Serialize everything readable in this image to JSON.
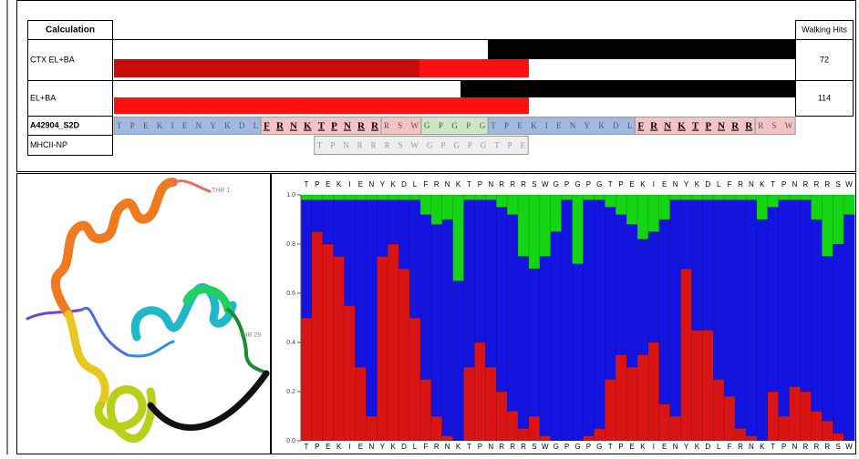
{
  "top_panel": {
    "header": {
      "calculation": "Calculation",
      "walking_hits": "Walking Hits"
    },
    "rows": [
      {
        "label": "CTX EL+BA",
        "hits": "72"
      },
      {
        "label": "EL+BA",
        "hits": "114"
      }
    ],
    "sequence_rows": [
      {
        "label": "A42904_S2D",
        "segments": [
          {
            "text": "TPEKIENYKDL",
            "color": "#9fb9e2"
          },
          {
            "text": "FRNKTPNRR",
            "color": "#f5c3c3",
            "bold": true
          },
          {
            "text": "RSW",
            "color": "#f5c3c3"
          },
          {
            "text": "GPGPG",
            "color": "#cbe7c3"
          },
          {
            "text": "TPEKIENYKDL",
            "color": "#9fb9e2"
          },
          {
            "text": "FRNKTPNRR",
            "color": "#f5c3c3",
            "bold": true
          },
          {
            "text": "RSW",
            "color": "#f5c3c3"
          }
        ]
      },
      {
        "label": "MHCII-NP",
        "segments": [
          {
            "text": "TPNRRRSWGPGPGTPE",
            "color": "#eeeeee"
          }
        ]
      }
    ]
  },
  "structure": {
    "labels": [
      "THR 1",
      "THR 29"
    ]
  },
  "chart_data": {
    "type": "stacked_bar",
    "categories": [
      "T",
      "P",
      "E",
      "K",
      "I",
      "E",
      "N",
      "Y",
      "K",
      "D",
      "L",
      "F",
      "R",
      "N",
      "K",
      "T",
      "P",
      "N",
      "R",
      "R",
      "R",
      "S",
      "W",
      "G",
      "P",
      "G",
      "P",
      "G",
      "T",
      "P",
      "E",
      "K",
      "I",
      "E",
      "N",
      "Y",
      "K",
      "D",
      "L",
      "F",
      "R",
      "N",
      "K",
      "T",
      "P",
      "N",
      "R",
      "R",
      "R",
      "S",
      "W"
    ],
    "series": [
      {
        "color": "#d81414",
        "values": [
          0.5,
          0.85,
          0.8,
          0.75,
          0.55,
          0.3,
          0.1,
          0.75,
          0.8,
          0.7,
          0.5,
          0.25,
          0.1,
          0.02,
          0,
          0.3,
          0.4,
          0.3,
          0.2,
          0.12,
          0.05,
          0.1,
          0.02,
          0,
          0,
          0,
          0.02,
          0.05,
          0.25,
          0.35,
          0.3,
          0.35,
          0.4,
          0.15,
          0.1,
          0.7,
          0.45,
          0.45,
          0.25,
          0.18,
          0.05,
          0.02,
          0,
          0.2,
          0.1,
          0.22,
          0.2,
          0.12,
          0.08,
          0.03,
          0
        ]
      },
      {
        "color": "#1414e0",
        "values": [
          0.48,
          0.13,
          0.18,
          0.23,
          0.43,
          0.68,
          0.88,
          0.23,
          0.18,
          0.28,
          0.48,
          0.67,
          0.78,
          0.88,
          0.65,
          0.68,
          0.58,
          0.68,
          0.75,
          0.8,
          0.7,
          0.6,
          0.73,
          0.85,
          0.98,
          0.72,
          0.96,
          0.93,
          0.7,
          0.57,
          0.58,
          0.47,
          0.45,
          0.75,
          0.88,
          0.28,
          0.53,
          0.53,
          0.73,
          0.8,
          0.93,
          0.96,
          0.9,
          0.75,
          0.88,
          0.76,
          0.78,
          0.78,
          0.67,
          0.77,
          0.92
        ]
      },
      {
        "color": "#14d414",
        "values": [
          0.02,
          0.02,
          0.02,
          0.02,
          0.02,
          0.02,
          0.02,
          0.02,
          0.02,
          0.02,
          0.02,
          0.08,
          0.12,
          0.1,
          0.35,
          0.02,
          0.02,
          0.02,
          0.05,
          0.08,
          0.25,
          0.3,
          0.25,
          0.15,
          0.02,
          0.28,
          0.02,
          0.02,
          0.05,
          0.08,
          0.12,
          0.18,
          0.15,
          0.1,
          0.02,
          0.02,
          0.02,
          0.02,
          0.02,
          0.02,
          0.02,
          0.02,
          0.1,
          0.05,
          0.02,
          0.02,
          0.02,
          0.1,
          0.25,
          0.2,
          0.08
        ]
      }
    ],
    "ylim": [
      0,
      1
    ],
    "yticks": [
      {
        "value": 0,
        "label": "0.0"
      },
      0.2,
      0.4,
      0.6,
      0.8,
      {
        "value": 1,
        "label": "1.0"
      }
    ]
  }
}
